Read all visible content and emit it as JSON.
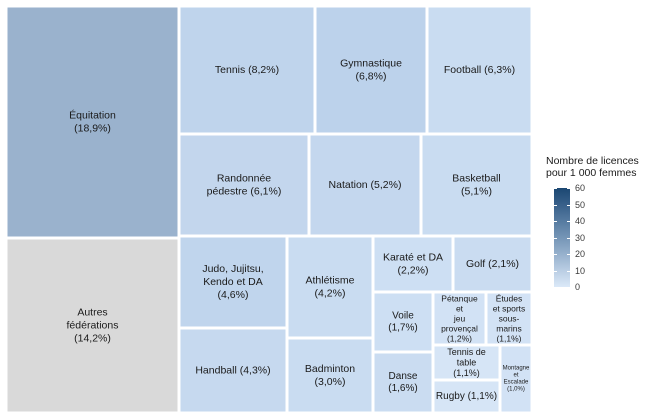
{
  "chart_data": {
    "type": "treemap",
    "legend": {
      "title_line1": "Nombre de licences",
      "title_line2": "pour 1 000 femmes",
      "ticks": [
        0,
        10,
        20,
        30,
        40,
        50,
        60
      ],
      "range": [
        0,
        60
      ],
      "color_low": "#dbe9f8",
      "color_high": "#1b4772"
    },
    "tiles": [
      {
        "name": "Équitation",
        "share": "18,9%",
        "value": 18.9,
        "lines": [
          "Équitation",
          "(18,9%)"
        ],
        "color": "#9ab2cd"
      },
      {
        "name": "Autres fédérations",
        "share": "14,2%",
        "value": 14.2,
        "lines": [
          "Autres",
          "fédérations",
          "(14,2%)"
        ],
        "color": "#d9d9d9"
      },
      {
        "name": "Tennis",
        "share": "8,2%",
        "value": 8.2,
        "lines": [
          "Tennis (8,2%)"
        ],
        "color": "#bfd4ec"
      },
      {
        "name": "Gymnastique",
        "share": "6,8%",
        "value": 6.8,
        "lines": [
          "Gymnastique",
          "(6,8%)"
        ],
        "color": "#bcd2eb"
      },
      {
        "name": "Football",
        "share": "6,3%",
        "value": 6.3,
        "lines": [
          "Football (6,3%)"
        ],
        "color": "#c9dcf1"
      },
      {
        "name": "Randonnée pédestre",
        "share": "6,1%",
        "value": 6.1,
        "lines": [
          "Randonnée",
          "pédestre (6,1%)"
        ],
        "color": "#c3d6ed"
      },
      {
        "name": "Natation",
        "share": "5,2%",
        "value": 5.2,
        "lines": [
          "Natation (5,2%)"
        ],
        "color": "#c4d7ee"
      },
      {
        "name": "Basketball",
        "share": "5,1%",
        "value": 5.1,
        "lines": [
          "Basketball",
          "(5,1%)"
        ],
        "color": "#c9dcf1"
      },
      {
        "name": "Judo, Jujitsu, Kendo et DA",
        "share": "4,6%",
        "value": 4.6,
        "lines": [
          "Judo, Jujitsu,",
          "Kendo et DA",
          "(4,6%)"
        ],
        "color": "#c0d5ed"
      },
      {
        "name": "Athlétisme",
        "share": "4,2%",
        "value": 4.2,
        "lines": [
          "Athlétisme",
          "(4,2%)"
        ],
        "color": "#c9dcf1"
      },
      {
        "name": "Handball",
        "share": "4,3%",
        "value": 4.3,
        "lines": [
          "Handball (4,3%)"
        ],
        "color": "#c6d9ef"
      },
      {
        "name": "Badminton",
        "share": "3,0%",
        "value": 3.0,
        "lines": [
          "Badminton",
          "(3,0%)"
        ],
        "color": "#c9dcf1"
      },
      {
        "name": "Karaté et DA",
        "share": "2,2%",
        "value": 2.2,
        "lines": [
          "Karaté et DA",
          "(2,2%)"
        ],
        "color": "#cddff3"
      },
      {
        "name": "Golf",
        "share": "2,1%",
        "value": 2.1,
        "lines": [
          "Golf (2,1%)"
        ],
        "color": "#cadcf1"
      },
      {
        "name": "Voile",
        "share": "1,7%",
        "value": 1.7,
        "lines": [
          "Voile",
          "(1,7%)"
        ],
        "color": "#cddff3"
      },
      {
        "name": "Pétanque et jeu provençal",
        "share": "1,2%",
        "value": 1.2,
        "lines": [
          "Pétanque",
          "et",
          "jeu",
          "provençal",
          "(1,2%)"
        ],
        "color": "#d2e2f5"
      },
      {
        "name": "Études et sports sous-marins",
        "share": "1,1%",
        "value": 1.1,
        "lines": [
          "Études",
          "et sports",
          "sous-",
          "marins",
          "(1,1%)"
        ],
        "color": "#d2e2f5"
      },
      {
        "name": "Danse",
        "share": "1,6%",
        "value": 1.6,
        "lines": [
          "Danse",
          "(1,6%)"
        ],
        "color": "#cadcf1"
      },
      {
        "name": "Tennis de table",
        "share": "1,1%",
        "value": 1.1,
        "lines": [
          "Tennis de",
          "table",
          "(1,1%)"
        ],
        "color": "#d6e5f6"
      },
      {
        "name": "Rugby",
        "share": "1,1%",
        "value": 1.1,
        "lines": [
          "Rugby (1,1%)"
        ],
        "color": "#d6e5f6"
      },
      {
        "name": "Montagne et Escalade",
        "share": "1,0%",
        "value": 1.0,
        "lines": [
          "Montagne",
          "et",
          "Escalade",
          "(1,0%)"
        ],
        "color": "#d2e2f5"
      }
    ]
  }
}
